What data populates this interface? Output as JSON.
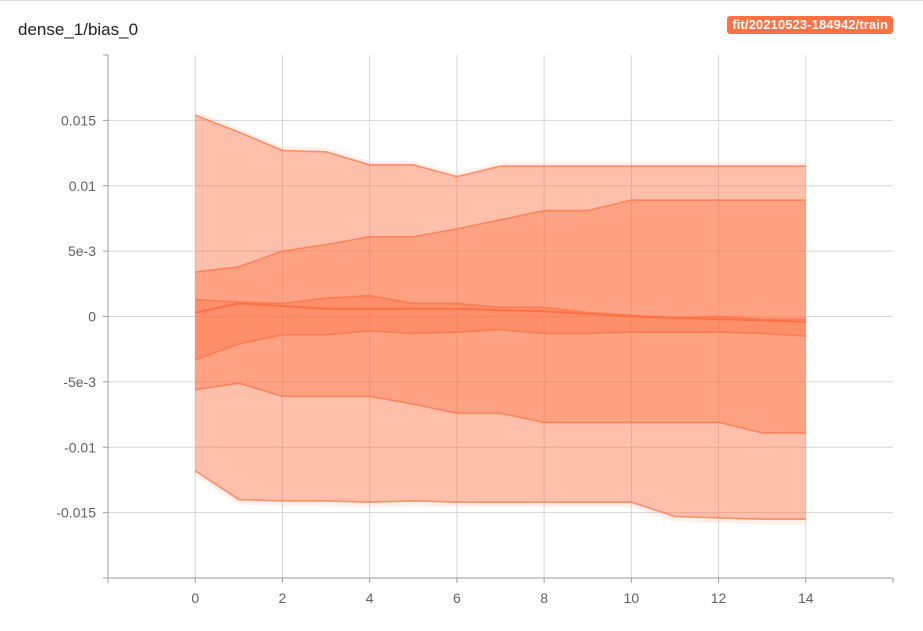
{
  "card": {
    "title": "dense_1/bias_0",
    "run_label": "fit/20210523-184942/train",
    "accent_color": "#ff7043"
  },
  "chart_data": {
    "type": "area",
    "title": "dense_1/bias_0",
    "xlabel": "",
    "ylabel": "",
    "xlim": [
      -2,
      16
    ],
    "ylim": [
      -0.02,
      0.02
    ],
    "grid": true,
    "x_ticks": [
      0,
      2,
      4,
      6,
      8,
      10,
      12,
      14
    ],
    "x_tick_labels": [
      "0",
      "2",
      "4",
      "6",
      "8",
      "10",
      "12",
      "14"
    ],
    "y_ticks": [
      -0.015,
      -0.01,
      -0.005,
      0,
      0.005,
      0.01,
      0.015
    ],
    "y_tick_labels": [
      "-0.015",
      "-0.01",
      "-5e-3",
      "0",
      "5e-3",
      "0.01",
      "0.015"
    ],
    "x": [
      0,
      1,
      2,
      3,
      4,
      5,
      6,
      7,
      8,
      9,
      10,
      11,
      12,
      13,
      14
    ],
    "series": [
      {
        "values": [
          0.0154,
          0.0141,
          0.0127,
          0.0126,
          0.0116,
          0.0116,
          0.0107,
          0.0115,
          0.0115,
          0.0115,
          0.0115,
          0.0115,
          0.0115,
          0.0115,
          0.0115
        ]
      },
      {
        "values": [
          0.0034,
          0.0038,
          0.005,
          0.0055,
          0.0061,
          0.0061,
          0.0067,
          0.0074,
          0.0081,
          0.0081,
          0.0089,
          0.0089,
          0.0089,
          0.0089,
          0.0089
        ]
      },
      {
        "values": [
          0.0013,
          0.0011,
          0.001,
          0.0014,
          0.0016,
          0.001,
          0.001,
          0.0007,
          0.0007,
          0.0003,
          0.0001,
          -0.0001,
          0.0,
          -0.0002,
          -0.0002
        ]
      },
      {
        "values": [
          0.0003,
          0.001,
          0.0008,
          0.0006,
          0.0006,
          0.0006,
          0.0006,
          0.0005,
          0.0004,
          0.0002,
          0.0,
          -0.0001,
          -0.0002,
          -0.0003,
          -0.0004
        ]
      },
      {
        "values": [
          -0.0033,
          -0.0021,
          -0.0014,
          -0.0014,
          -0.0011,
          -0.0013,
          -0.0012,
          -0.001,
          -0.0013,
          -0.0013,
          -0.0012,
          -0.0012,
          -0.0012,
          -0.0013,
          -0.0015
        ]
      },
      {
        "values": [
          -0.0056,
          -0.0051,
          -0.0061,
          -0.0061,
          -0.0061,
          -0.0067,
          -0.0074,
          -0.0074,
          -0.0081,
          -0.0081,
          -0.0081,
          -0.0081,
          -0.0081,
          -0.0089,
          -0.0089
        ]
      },
      {
        "values": [
          -0.0118,
          -0.014,
          -0.0141,
          -0.0141,
          -0.0142,
          -0.0141,
          -0.0142,
          -0.0142,
          -0.0142,
          -0.0142,
          -0.0142,
          -0.0153,
          -0.0154,
          -0.0155,
          -0.0155
        ]
      }
    ]
  }
}
